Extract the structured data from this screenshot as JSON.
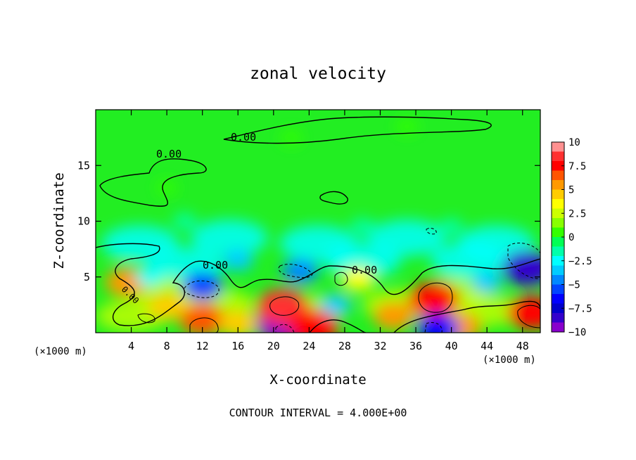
{
  "chart_data": {
    "type": "heatmap",
    "title": "zonal velocity",
    "xlabel": "X-coordinate",
    "ylabel": "Z-coordinate",
    "x_unit_left": "(×1000 m)",
    "x_unit_right": "(×1000 m)",
    "xlim": [
      0,
      50
    ],
    "ylim": [
      0,
      20
    ],
    "xticks": [
      4,
      8,
      12,
      16,
      20,
      24,
      28,
      32,
      36,
      40,
      44,
      48
    ],
    "yticks": [
      5,
      10,
      15
    ],
    "contour_labels": [
      "0.00",
      "0.00",
      "0.00",
      "0.00",
      "0.00"
    ],
    "footer": "CONTOUR INTERVAL = 4.000E+00",
    "colorbar": {
      "ticks": [
        "10",
        "7.5",
        "5",
        "2.5",
        "0",
        "−2.5",
        "−5",
        "−7.5",
        "−10"
      ],
      "range": [
        -10,
        10
      ],
      "colors": [
        "#ff9090",
        "#ff3030",
        "#ff0000",
        "#ff5500",
        "#ff9900",
        "#ffcc00",
        "#ffff00",
        "#ccff00",
        "#88ff00",
        "#33ff00",
        "#00ff55",
        "#00ffaa",
        "#00ffff",
        "#00ccff",
        "#0088ff",
        "#0044ff",
        "#0000ff",
        "#0000cc",
        "#3300cc",
        "#8800cc"
      ]
    },
    "blobs": [
      {
        "x": 12,
        "z": 4.2,
        "v": -5.5
      },
      {
        "x": 21,
        "z": 0.8,
        "v": -9
      },
      {
        "x": 21,
        "z": 2.3,
        "v": 8.5
      },
      {
        "x": 12,
        "z": 1.2,
        "v": 7
      },
      {
        "x": 24.5,
        "z": 0.5,
        "v": 8
      },
      {
        "x": 38,
        "z": 3.0,
        "v": 8
      },
      {
        "x": 49,
        "z": 1.8,
        "v": 7.5
      },
      {
        "x": 48.5,
        "z": 5.8,
        "v": -8
      },
      {
        "x": 3.5,
        "z": 4.5,
        "v": 6
      },
      {
        "x": 29.5,
        "z": 4.8,
        "v": 4
      },
      {
        "x": 33.5,
        "z": 1.5,
        "v": 5.5
      },
      {
        "x": 41,
        "z": 0.5,
        "v": 6
      },
      {
        "x": 38.5,
        "z": 0.4,
        "v": -6
      },
      {
        "x": 16,
        "z": 0.8,
        "v": 5
      },
      {
        "x": 8,
        "z": 2.3,
        "v": 5
      },
      {
        "x": 27,
        "z": 2.5,
        "v": -3
      },
      {
        "x": 23,
        "z": 5.5,
        "v": -4.5
      },
      {
        "x": 16,
        "z": 6.5,
        "v": -3
      },
      {
        "x": 6,
        "z": 5,
        "v": -2
      },
      {
        "x": 44,
        "z": 4.5,
        "v": -3
      },
      {
        "x": 30,
        "z": 9.5,
        "v": -1.5
      },
      {
        "x": 10,
        "z": 10,
        "v": -1.2
      },
      {
        "x": 40,
        "z": 9.5,
        "v": -1.3
      },
      {
        "x": 22,
        "z": 17.5,
        "v": 0.8
      },
      {
        "x": 35,
        "z": 18.5,
        "v": 1.0
      },
      {
        "x": 8,
        "z": 13,
        "v": 0.6
      }
    ]
  }
}
